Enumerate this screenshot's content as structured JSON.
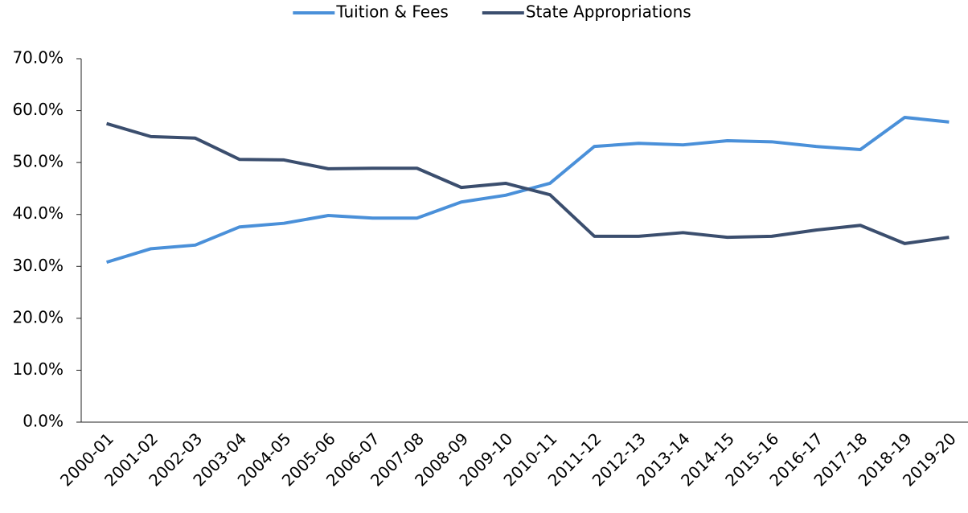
{
  "chart_data": {
    "type": "line",
    "categories": [
      "2000-01",
      "2001-02",
      "2002-03",
      "2003-04",
      "2004-05",
      "2005-06",
      "2006-07",
      "2007-08",
      "2008-09",
      "2009-10",
      "2010-11",
      "2011-12",
      "2012-13",
      "2013-14",
      "2014-15",
      "2015-16",
      "2016-17",
      "2017-18",
      "2018-19",
      "2019-20"
    ],
    "series": [
      {
        "name": "Tuition & Fees",
        "color": "#4a90d9",
        "values": [
          30.8,
          33.4,
          34.1,
          37.6,
          38.3,
          39.8,
          39.3,
          39.3,
          42.4,
          43.7,
          46.0,
          53.1,
          53.7,
          53.4,
          54.2,
          54.0,
          53.1,
          52.5,
          58.7,
          57.8
        ]
      },
      {
        "name": "State Appropriations",
        "color": "#3b4e6e",
        "values": [
          57.5,
          55.0,
          54.7,
          50.6,
          50.5,
          48.8,
          48.9,
          48.9,
          45.2,
          46.0,
          43.8,
          35.8,
          35.8,
          36.5,
          35.6,
          35.8,
          37.0,
          37.9,
          34.4,
          35.6
        ]
      }
    ],
    "ylim": [
      0,
      70
    ],
    "yticks": [
      {
        "value": 0,
        "label": "0.0%"
      },
      {
        "value": 10,
        "label": "10.0%"
      },
      {
        "value": 20,
        "label": "20.0%"
      },
      {
        "value": 30,
        "label": "30.0%"
      },
      {
        "value": 40,
        "label": "40.0%"
      },
      {
        "value": 50,
        "label": "50.0%"
      },
      {
        "value": 60,
        "label": "60.0%"
      },
      {
        "value": 70,
        "label": "70.0%"
      }
    ],
    "grid": false,
    "legend": "top"
  }
}
